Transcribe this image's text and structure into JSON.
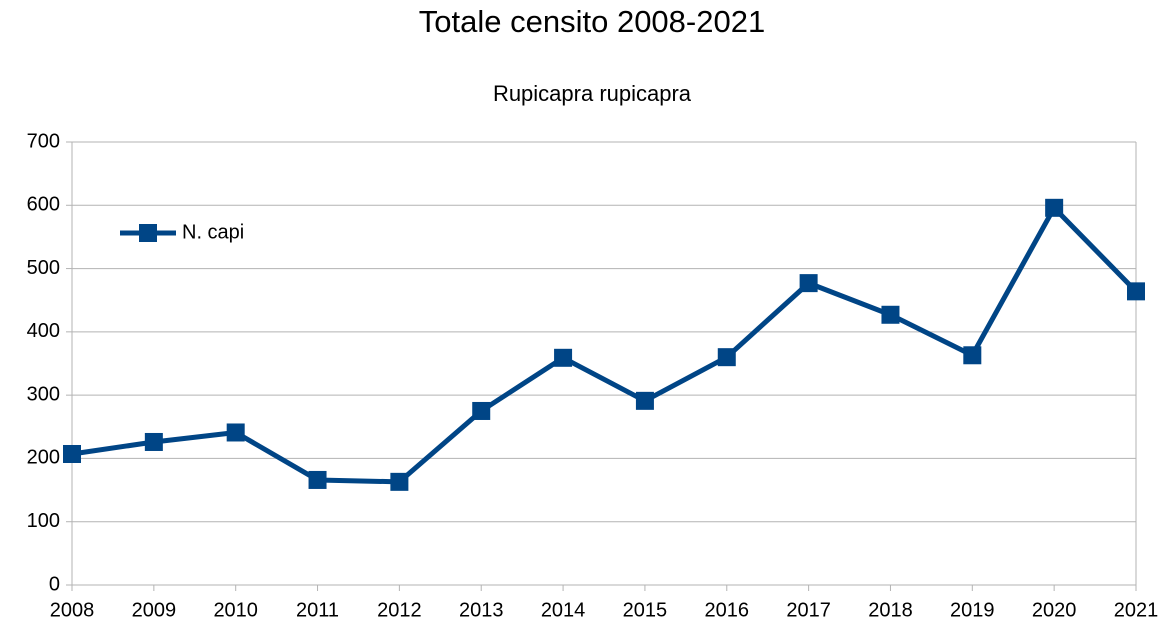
{
  "chart_data": {
    "type": "line",
    "title": "Totale censito 2008-2021",
    "subtitle": "Rupicapra rupicapra",
    "x": [
      2008,
      2009,
      2010,
      2011,
      2012,
      2013,
      2014,
      2015,
      2016,
      2017,
      2018,
      2019,
      2020,
      2021
    ],
    "series": [
      {
        "name": "N. capi",
        "color": "#004586",
        "values": [
          207,
          226,
          241,
          166,
          163,
          275,
          359,
          291,
          360,
          477,
          427,
          363,
          596,
          464
        ]
      }
    ],
    "xlim": [
      2008,
      2021
    ],
    "xticks": [
      2008,
      2009,
      2010,
      2011,
      2012,
      2013,
      2014,
      2015,
      2016,
      2017,
      2018,
      2019,
      2020,
      2021
    ],
    "ylim": [
      0,
      700
    ],
    "yticks": [
      0,
      100,
      200,
      300,
      400,
      500,
      600,
      700
    ],
    "grid": true,
    "legend": "top-left"
  }
}
